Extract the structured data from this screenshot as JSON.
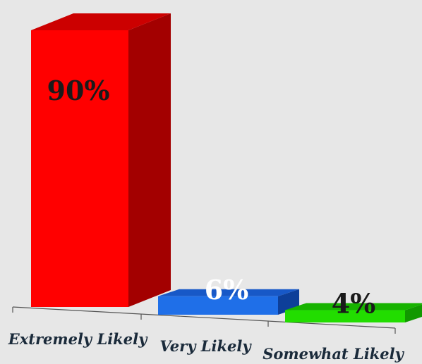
{
  "chart_data": {
    "type": "bar",
    "style": "3d",
    "categories": [
      "Extremely Likely",
      "Very Likely",
      "Somewhat Likely"
    ],
    "values": [
      90,
      6,
      4
    ],
    "value_labels": [
      "90%",
      "6%",
      "4%"
    ],
    "title": "",
    "xlabel": "",
    "ylabel": "",
    "ylim": [
      0,
      100
    ],
    "grid": false,
    "legend": "none",
    "colors": {
      "bars": [
        "#ff0000",
        "#1f6fe8",
        "#22dd00"
      ],
      "bar_sides": [
        "#a30000",
        "#0d3f99",
        "#119900"
      ],
      "bar_tops": [
        "#cc0000",
        "#1758c7",
        "#17b300"
      ],
      "label_colors": [
        "#1a1a1a",
        "#ffffff",
        "#1a1a1a"
      ],
      "background": "#e7e7e7",
      "axis": "#555555"
    }
  }
}
